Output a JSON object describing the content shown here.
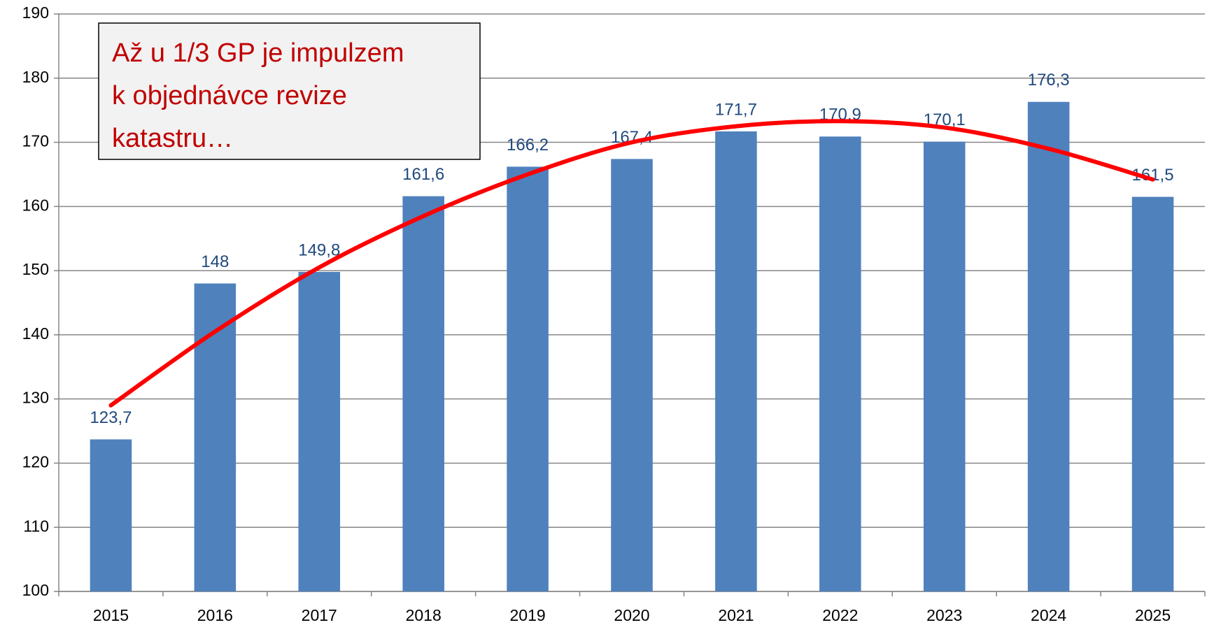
{
  "chart_data": {
    "type": "bar",
    "categories": [
      "2015",
      "2016",
      "2017",
      "2018",
      "2019",
      "2020",
      "2021",
      "2022",
      "2023",
      "2024",
      "2025"
    ],
    "values": [
      123.7,
      148,
      149.8,
      161.6,
      166.2,
      167.4,
      171.7,
      170.9,
      170.1,
      176.3,
      161.5
    ],
    "value_labels": [
      "123,7",
      "148",
      "149,8",
      "161,6",
      "166,2",
      "167,4",
      "171,7",
      "170,9",
      "170,1",
      "176,3",
      "161,5"
    ],
    "color": "#4f81bd",
    "ylim": [
      100,
      190
    ],
    "yticks": [
      100,
      110,
      120,
      130,
      140,
      150,
      160,
      170,
      180,
      190
    ],
    "grid": true,
    "trendline": {
      "color": "#ff0000",
      "values": [
        129,
        140.5,
        150.5,
        158.5,
        165,
        170,
        172.5,
        173.3,
        172.3,
        169,
        164.2
      ]
    },
    "annotation": [
      "Až u 1/3 GP je impulzem",
      "k objednávce revize",
      "katastru…"
    ]
  }
}
